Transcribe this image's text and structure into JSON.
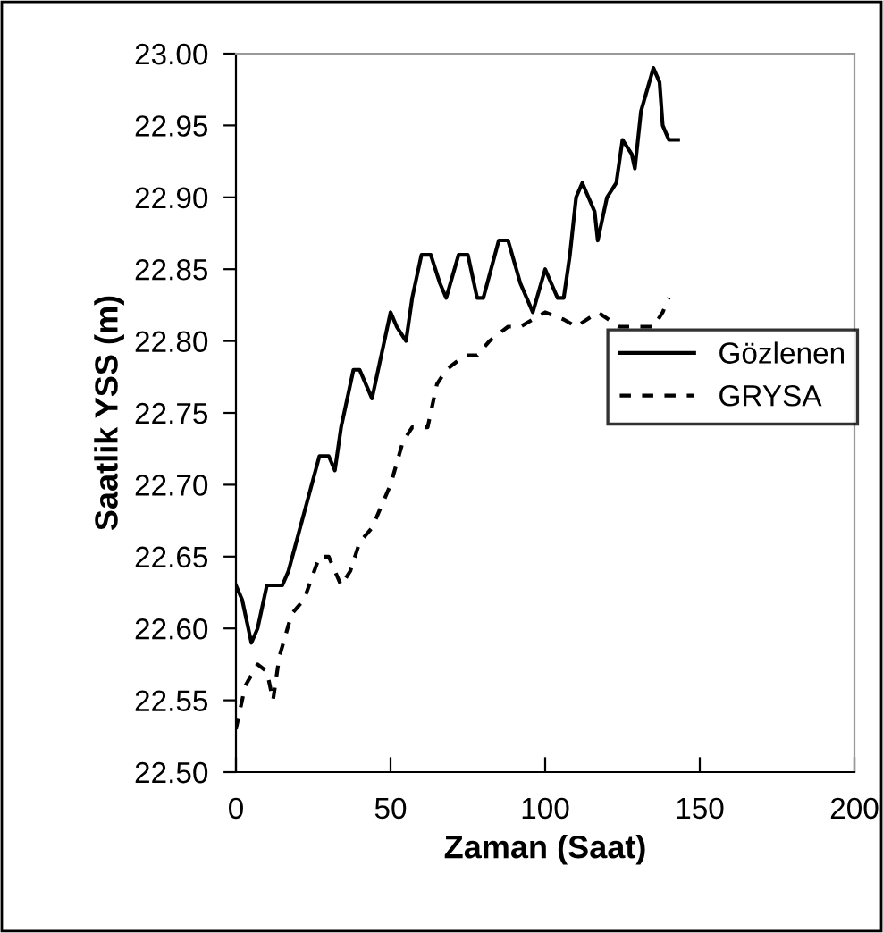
{
  "chart_data": {
    "type": "line",
    "xlabel": "Zaman (Saat)",
    "ylabel": "Saatlik YSS (m)",
    "xlim": [
      0,
      200
    ],
    "xticks": [
      0,
      50,
      100,
      150,
      200
    ],
    "ylim": [
      22.5,
      23.0
    ],
    "yticks": [
      {
        "value": 22.5,
        "label": "22.50"
      },
      {
        "value": 22.55,
        "label": "22.55"
      },
      {
        "value": 22.6,
        "label": "22.60"
      },
      {
        "value": 22.65,
        "label": "22.65"
      },
      {
        "value": 22.7,
        "label": "22.70"
      },
      {
        "value": 22.75,
        "label": "22.75"
      },
      {
        "value": 22.8,
        "label": "22.80"
      },
      {
        "value": 22.85,
        "label": "22.85"
      },
      {
        "value": 22.9,
        "label": "22.90"
      },
      {
        "value": 22.95,
        "label": "22.95"
      },
      {
        "value": 23.0,
        "label": "23.00"
      }
    ],
    "grid": false,
    "legend": "right",
    "series": [
      {
        "name": "Gözlenen",
        "color": "#000000",
        "line_style": "solid",
        "x": [
          0,
          2,
          5,
          7,
          10,
          15,
          17,
          22,
          27,
          30,
          32,
          34,
          38,
          40,
          42,
          44,
          46,
          48,
          50,
          52,
          55,
          57,
          60,
          63,
          66,
          68,
          72,
          75,
          78,
          80,
          85,
          88,
          92,
          96,
          100,
          102,
          104,
          106,
          108,
          110,
          112,
          114,
          116,
          117,
          120,
          123,
          125,
          128,
          129,
          131,
          135,
          137,
          138,
          140,
          143
        ],
        "values": [
          22.63,
          22.62,
          22.59,
          22.6,
          22.63,
          22.63,
          22.64,
          22.68,
          22.72,
          22.72,
          22.71,
          22.74,
          22.78,
          22.78,
          22.77,
          22.76,
          22.78,
          22.8,
          22.82,
          22.81,
          22.8,
          22.83,
          22.86,
          22.86,
          22.84,
          22.83,
          22.86,
          22.86,
          22.83,
          22.83,
          22.87,
          22.87,
          22.84,
          22.82,
          22.85,
          22.84,
          22.83,
          22.83,
          22.86,
          22.9,
          22.91,
          22.9,
          22.89,
          22.87,
          22.9,
          22.91,
          22.94,
          22.93,
          22.92,
          22.96,
          22.99,
          22.98,
          22.95,
          22.94,
          22.94
        ]
      },
      {
        "name": "GRYSA",
        "color": "#000000",
        "line_style": "dashed",
        "x": [
          0,
          3,
          7,
          10,
          12,
          14,
          18,
          22,
          27,
          30,
          34,
          37,
          40,
          44,
          50,
          54,
          57,
          62,
          65,
          68,
          74,
          78,
          82,
          88,
          92,
          100,
          106,
          110,
          117,
          124,
          130,
          135,
          138,
          140
        ],
        "values": [
          22.53,
          22.56,
          22.575,
          22.57,
          22.55,
          22.58,
          22.61,
          22.62,
          22.65,
          22.65,
          22.63,
          22.64,
          22.66,
          22.67,
          22.7,
          22.73,
          22.74,
          22.74,
          22.77,
          22.78,
          22.79,
          22.79,
          22.8,
          22.81,
          22.81,
          22.82,
          22.815,
          22.81,
          22.82,
          22.81,
          22.81,
          22.81,
          22.82,
          22.83
        ]
      }
    ]
  }
}
